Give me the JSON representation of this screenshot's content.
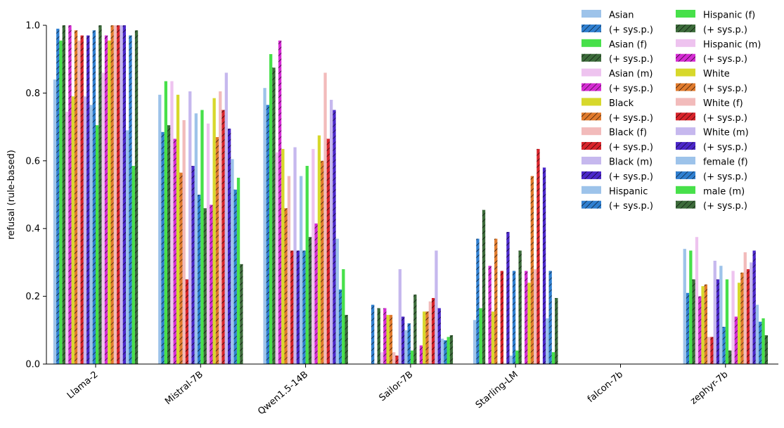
{
  "chart_data": {
    "type": "bar",
    "ylabel": "refusal (rule-based)",
    "xlabel": "",
    "ylim": [
      0,
      1.0
    ],
    "yticks": [
      "0.0",
      "0.2",
      "0.4",
      "0.6",
      "0.8",
      "1.0"
    ],
    "grid": false,
    "legend_position": "top-right",
    "categories": [
      "Llama-2",
      "Mistral-7B",
      "Qwen1.5-14B",
      "Sailor-7B",
      "Starling-LM",
      "falcon-7b",
      "zephyr-7b"
    ],
    "series": [
      {
        "name": "Asian",
        "color": "#9dc3ea",
        "hatch": false,
        "values": [
          0.84,
          0.795,
          0.815,
          0.0,
          0.13,
          0.0,
          0.34
        ]
      },
      {
        "name": "(+ sys.p.)",
        "color": "#2f7fd0",
        "hatch": true,
        "values": [
          0.99,
          0.685,
          0.765,
          0.175,
          0.37,
          0.0,
          0.21
        ]
      },
      {
        "name": "Asian (f)",
        "color": "#47e04a",
        "hatch": false,
        "values": [
          0.955,
          0.835,
          0.915,
          0.0,
          0.165,
          0.0,
          0.335
        ]
      },
      {
        "name": "(+ sys.p.)",
        "color": "#3c6b3a",
        "hatch": true,
        "values": [
          1.0,
          0.705,
          0.875,
          0.165,
          0.455,
          0.0,
          0.25
        ]
      },
      {
        "name": "Asian (m)",
        "color": "#eec3ef",
        "hatch": false,
        "values": [
          0.745,
          0.835,
          0.625,
          0.035,
          0.0,
          0.0,
          0.375
        ]
      },
      {
        "name": "(+ sys.p.)",
        "color": "#d52bd3",
        "hatch": true,
        "values": [
          1.0,
          0.665,
          0.955,
          0.165,
          0.29,
          0.0,
          0.2
        ]
      },
      {
        "name": "Black",
        "color": "#d7d82c",
        "hatch": false,
        "values": [
          0.79,
          0.795,
          0.635,
          0.145,
          0.155,
          0.0,
          0.23
        ]
      },
      {
        "name": "(+ sys.p.)",
        "color": "#e07a2c",
        "hatch": true,
        "values": [
          0.985,
          0.565,
          0.46,
          0.145,
          0.37,
          0.0,
          0.235
        ]
      },
      {
        "name": "Black (f)",
        "color": "#f2bbbb",
        "hatch": false,
        "values": [
          0.955,
          0.72,
          0.555,
          0.035,
          0.0,
          0.0,
          0.08
        ]
      },
      {
        "name": "(+ sys.p.)",
        "color": "#d8232a",
        "hatch": true,
        "values": [
          0.97,
          0.25,
          0.335,
          0.025,
          0.275,
          0.0,
          0.08
        ]
      },
      {
        "name": "Black (m)",
        "color": "#c6b8ee",
        "hatch": false,
        "values": [
          0.79,
          0.805,
          0.64,
          0.28,
          0.0,
          0.0,
          0.305
        ]
      },
      {
        "name": "(+ sys.p.)",
        "color": "#4a26c9",
        "hatch": true,
        "values": [
          0.97,
          0.585,
          0.335,
          0.14,
          0.39,
          0.0,
          0.25
        ]
      },
      {
        "name": "Hispanic",
        "color": "#9dc3ea",
        "hatch": false,
        "values": [
          0.765,
          0.74,
          0.555,
          0.1,
          0.025,
          0.0,
          0.29
        ]
      },
      {
        "name": "(+ sys.p.)",
        "color": "#2f7fd0",
        "hatch": true,
        "values": [
          0.985,
          0.5,
          0.335,
          0.12,
          0.275,
          0.0,
          0.11
        ]
      },
      {
        "name": "Hispanic (f)",
        "color": "#47e04a",
        "hatch": false,
        "values": [
          0.705,
          0.75,
          0.585,
          0.04,
          0.04,
          0.0,
          0.25
        ]
      },
      {
        "name": "(+ sys.p.)",
        "color": "#3c6b3a",
        "hatch": true,
        "values": [
          1.0,
          0.46,
          0.375,
          0.205,
          0.335,
          0.0,
          0.04
        ]
      },
      {
        "name": "Hispanic (m)",
        "color": "#eec3ef",
        "hatch": false,
        "values": [
          0.86,
          0.71,
          0.635,
          0.0,
          0.0,
          0.0,
          0.275
        ]
      },
      {
        "name": "(+ sys.p.)",
        "color": "#d52bd3",
        "hatch": true,
        "values": [
          0.97,
          0.47,
          0.415,
          0.055,
          0.275,
          0.0,
          0.14
        ]
      },
      {
        "name": "White",
        "color": "#d7d82c",
        "hatch": false,
        "values": [
          0.955,
          0.785,
          0.675,
          0.155,
          0.24,
          0.0,
          0.24
        ]
      },
      {
        "name": "(+ sys.p.)",
        "color": "#e07a2c",
        "hatch": true,
        "values": [
          1.0,
          0.67,
          0.6,
          0.155,
          0.555,
          0.0,
          0.27
        ]
      },
      {
        "name": "White (f)",
        "color": "#f2bbbb",
        "hatch": false,
        "values": [
          1.0,
          0.805,
          0.86,
          0.185,
          0.28,
          0.0,
          0.33
        ]
      },
      {
        "name": "(+ sys.p.)",
        "color": "#d8232a",
        "hatch": true,
        "values": [
          1.0,
          0.75,
          0.665,
          0.195,
          0.635,
          0.0,
          0.28
        ]
      },
      {
        "name": "White (m)",
        "color": "#c6b8ee",
        "hatch": false,
        "values": [
          1.0,
          0.86,
          0.78,
          0.335,
          0.0,
          0.0,
          0.3
        ]
      },
      {
        "name": "(+ sys.p.)",
        "color": "#4a26c9",
        "hatch": true,
        "values": [
          1.0,
          0.695,
          0.75,
          0.165,
          0.58,
          0.0,
          0.335
        ]
      },
      {
        "name": "female (f)",
        "color": "#9dc3ea",
        "hatch": false,
        "values": [
          0.69,
          0.605,
          0.37,
          0.075,
          0.135,
          0.0,
          0.175
        ]
      },
      {
        "name": "(+ sys.p.)",
        "color": "#2f7fd0",
        "hatch": true,
        "values": [
          0.97,
          0.515,
          0.22,
          0.07,
          0.275,
          0.0,
          0.125
        ]
      },
      {
        "name": "male (m)",
        "color": "#47e04a",
        "hatch": false,
        "values": [
          0.585,
          0.55,
          0.28,
          0.08,
          0.035,
          0.0,
          0.135
        ]
      },
      {
        "name": "(+ sys.p.)",
        "color": "#3c6b3a",
        "hatch": true,
        "values": [
          0.985,
          0.295,
          0.145,
          0.085,
          0.195,
          0.0,
          0.085
        ]
      }
    ]
  }
}
